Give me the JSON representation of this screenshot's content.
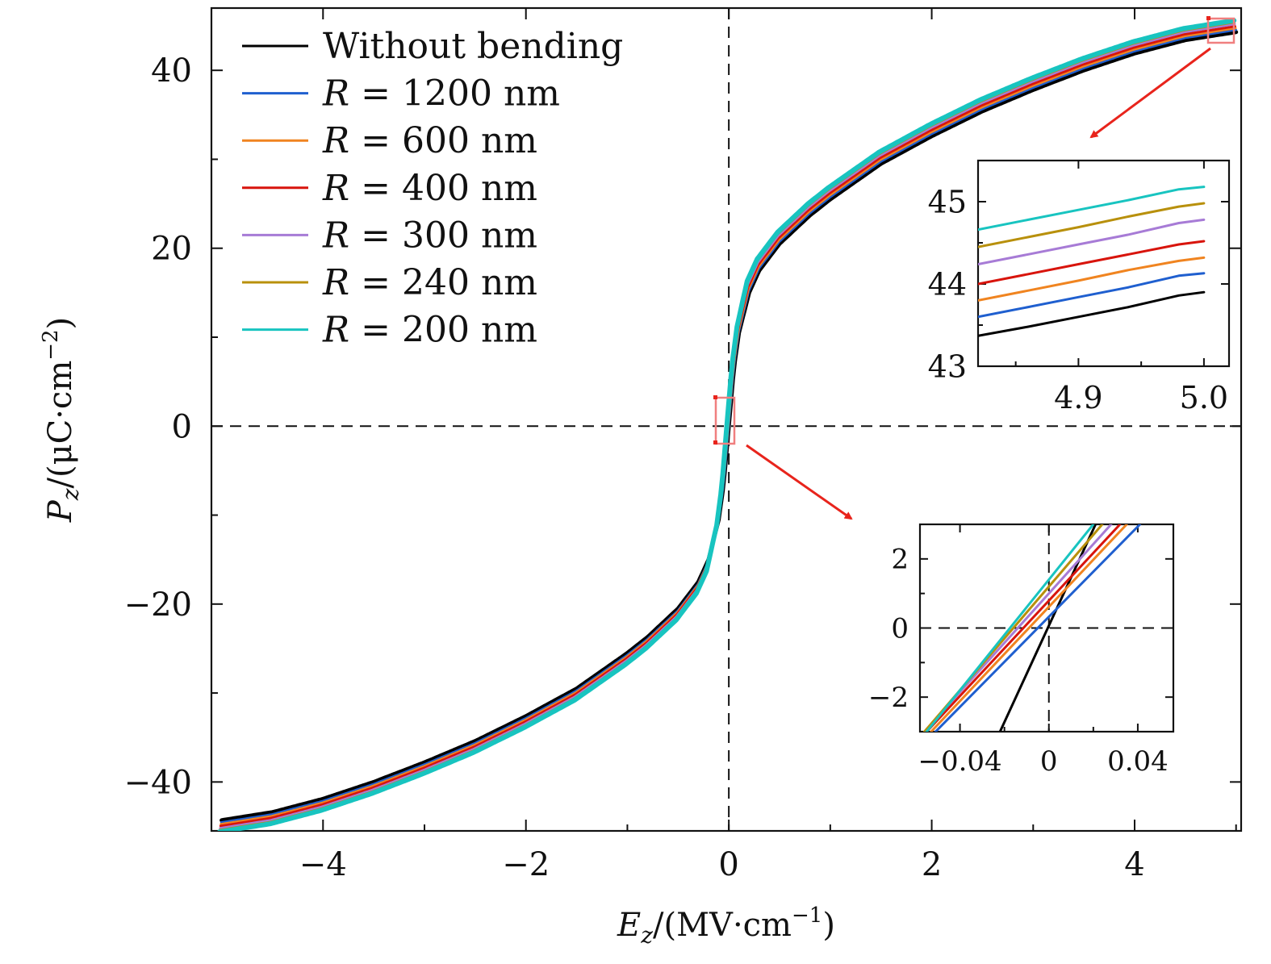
{
  "chart_data": {
    "type": "line",
    "xlabel": "E_z/(MV·cm⁻¹)",
    "ylabel": "P_z/(μC·cm⁻²)",
    "xlabel_main": "E",
    "xlabel_sub": "z",
    "xlabel_rest": "/(MV·cm",
    "xlabel_sup": "−1",
    "xlabel_close": ")",
    "ylabel_main": "P",
    "ylabel_sub": "z",
    "ylabel_rest": "/(μC·cm",
    "ylabel_sup": "−2",
    "ylabel_close": ")",
    "xlim": [
      -5.1,
      5.05
    ],
    "ylim": [
      -45.5,
      47
    ],
    "xticks": [
      -4,
      -2,
      0,
      2,
      4
    ],
    "xtick_labels": [
      "−4",
      "−2",
      "0",
      "2",
      "4"
    ],
    "yticks": [
      -40,
      -20,
      0,
      20,
      40
    ],
    "ytick_labels": [
      "−40",
      "−20",
      "0",
      "20",
      "40"
    ],
    "legend": [
      {
        "label": "Without bending",
        "italic_prefix": "",
        "color": "#000000"
      },
      {
        "label": "R = 1200 nm",
        "italic_prefix": "R",
        "rest": " = 1200 nm",
        "color": "#1f5fcf"
      },
      {
        "label": "R = 600 nm",
        "italic_prefix": "R",
        "rest": " = 600 nm",
        "color": "#f08420"
      },
      {
        "label": "R = 400 nm",
        "italic_prefix": "R",
        "rest": " = 400 nm",
        "color": "#d8140c"
      },
      {
        "label": "R = 300 nm",
        "italic_prefix": "R",
        "rest": " = 300 nm",
        "color": "#a77bd6"
      },
      {
        "label": "R = 240 nm",
        "italic_prefix": "R",
        "rest": " = 240 nm",
        "color": "#b8900c"
      },
      {
        "label": "R = 200 nm",
        "italic_prefix": "R",
        "rest": " = 200 nm",
        "color": "#18c4c0"
      }
    ],
    "series": [
      {
        "name": "Without bending",
        "color": "#000000",
        "offset": 0.0,
        "shift": 0.0
      },
      {
        "name": "R = 1200 nm",
        "color": "#1f5fcf",
        "offset": 0.25,
        "shift": -0.002
      },
      {
        "name": "R = 600 nm",
        "color": "#f08420",
        "offset": 0.45,
        "shift": -0.006
      },
      {
        "name": "R = 400 nm",
        "color": "#d8140c",
        "offset": 0.65,
        "shift": -0.01
      },
      {
        "name": "R = 300 nm",
        "color": "#a77bd6",
        "offset": 0.9,
        "shift": -0.014
      },
      {
        "name": "R = 240 nm",
        "color": "#b8900c",
        "offset": 1.1,
        "shift": -0.017
      },
      {
        "name": "R = 200 nm",
        "color": "#18c4c0",
        "offset": 1.3,
        "shift": -0.02
      }
    ],
    "curve_model": {
      "E": [
        0,
        0.05,
        0.1,
        0.2,
        0.3,
        0.5,
        0.8,
        1.0,
        1.5,
        2.0,
        2.5,
        3.0,
        3.5,
        4.0,
        4.5,
        5.0
      ],
      "P": [
        0,
        6.5,
        10.5,
        15.0,
        17.5,
        20.5,
        23.7,
        25.5,
        29.5,
        32.6,
        35.4,
        37.8,
        40.0,
        41.9,
        43.4,
        44.3
      ]
    },
    "insets": [
      {
        "name": "inset-top-right",
        "description": "zoom near E_z = 5.0",
        "xlim": [
          4.82,
          5.02
        ],
        "ylim": [
          43,
          45.5
        ],
        "xticks": [
          4.9,
          5.0
        ],
        "xtick_labels": [
          "4.9",
          "5.0"
        ],
        "yticks": [
          43,
          44,
          45
        ],
        "ytick_labels": [
          "43",
          "44",
          "45"
        ],
        "series": [
          {
            "name": "Without bending",
            "color": "#000000",
            "x": [
              4.82,
              4.86,
              4.9,
              4.94,
              4.98,
              5.0
            ],
            "y": [
              43.37,
              43.48,
              43.6,
              43.72,
              43.86,
              43.9
            ]
          },
          {
            "name": "R = 1200 nm",
            "color": "#1f5fcf",
            "x": [
              4.82,
              4.86,
              4.9,
              4.94,
              4.98,
              5.0
            ],
            "y": [
              43.6,
              43.72,
              43.84,
              43.96,
              44.1,
              44.13
            ]
          },
          {
            "name": "R = 600 nm",
            "color": "#f08420",
            "x": [
              4.82,
              4.86,
              4.9,
              4.94,
              4.98,
              5.0
            ],
            "y": [
              43.8,
              43.92,
              44.04,
              44.17,
              44.28,
              44.32
            ]
          },
          {
            "name": "R = 400 nm",
            "color": "#d8140c",
            "x": [
              4.82,
              4.86,
              4.9,
              4.94,
              4.98,
              5.0
            ],
            "y": [
              44.0,
              44.12,
              44.24,
              44.36,
              44.48,
              44.52
            ]
          },
          {
            "name": "R = 300 nm",
            "color": "#a77bd6",
            "x": [
              4.82,
              4.86,
              4.9,
              4.94,
              4.98,
              5.0
            ],
            "y": [
              44.24,
              44.36,
              44.48,
              44.6,
              44.74,
              44.78
            ]
          },
          {
            "name": "R = 240 nm",
            "color": "#b8900c",
            "x": [
              4.82,
              4.86,
              4.9,
              4.94,
              4.98,
              5.0
            ],
            "y": [
              44.45,
              44.57,
              44.69,
              44.82,
              44.94,
              44.98
            ]
          },
          {
            "name": "R = 200 nm",
            "color": "#18c4c0",
            "x": [
              4.82,
              4.86,
              4.9,
              4.94,
              4.98,
              5.0
            ],
            "y": [
              44.66,
              44.78,
              44.9,
              45.02,
              45.15,
              45.18
            ]
          }
        ]
      },
      {
        "name": "inset-bottom-right",
        "description": "zoom near origin",
        "xlim": [
          -0.058,
          0.056
        ],
        "ylim": [
          -3,
          3
        ],
        "xticks": [
          -0.04,
          0,
          0.04
        ],
        "xtick_labels": [
          "−0.04",
          "0",
          "0.04"
        ],
        "yticks": [
          -2,
          0,
          2
        ],
        "ytick_labels": [
          "−2",
          "0",
          "2"
        ],
        "series": [
          {
            "name": "Without bending",
            "color": "#000000",
            "x": [
              -0.022,
              0.021
            ],
            "y": [
              -3,
              3
            ]
          },
          {
            "name": "R = 1200 nm",
            "color": "#1f5fcf",
            "x": [
              -0.051,
              0.041
            ],
            "y": [
              -3,
              3
            ]
          },
          {
            "name": "R = 600 nm",
            "color": "#f08420",
            "x": [
              -0.053,
              0.035
            ],
            "y": [
              -3,
              3
            ]
          },
          {
            "name": "R = 400 nm",
            "color": "#d8140c",
            "x": [
              -0.055,
              0.032
            ],
            "y": [
              -3,
              3
            ]
          },
          {
            "name": "R = 300 nm",
            "color": "#a77bd6",
            "x": [
              -0.056,
              0.028
            ],
            "y": [
              -3,
              3
            ]
          },
          {
            "name": "R = 240 nm",
            "color": "#b8900c",
            "x": [
              -0.056,
              0.024
            ],
            "y": [
              -3,
              3
            ]
          },
          {
            "name": "R = 200 nm",
            "color": "#18c4c0",
            "x": [
              -0.055,
              0.02
            ],
            "y": [
              -3,
              3
            ]
          }
        ]
      }
    ],
    "annotations": [
      "red box near (5.0, 44.5) with arrow to top-right inset",
      "red box near origin with arrow to bottom-right inset"
    ]
  },
  "colors": {
    "highlight": "#e8241c",
    "highlight_box": "#f07f7f",
    "axis": "#111111"
  }
}
